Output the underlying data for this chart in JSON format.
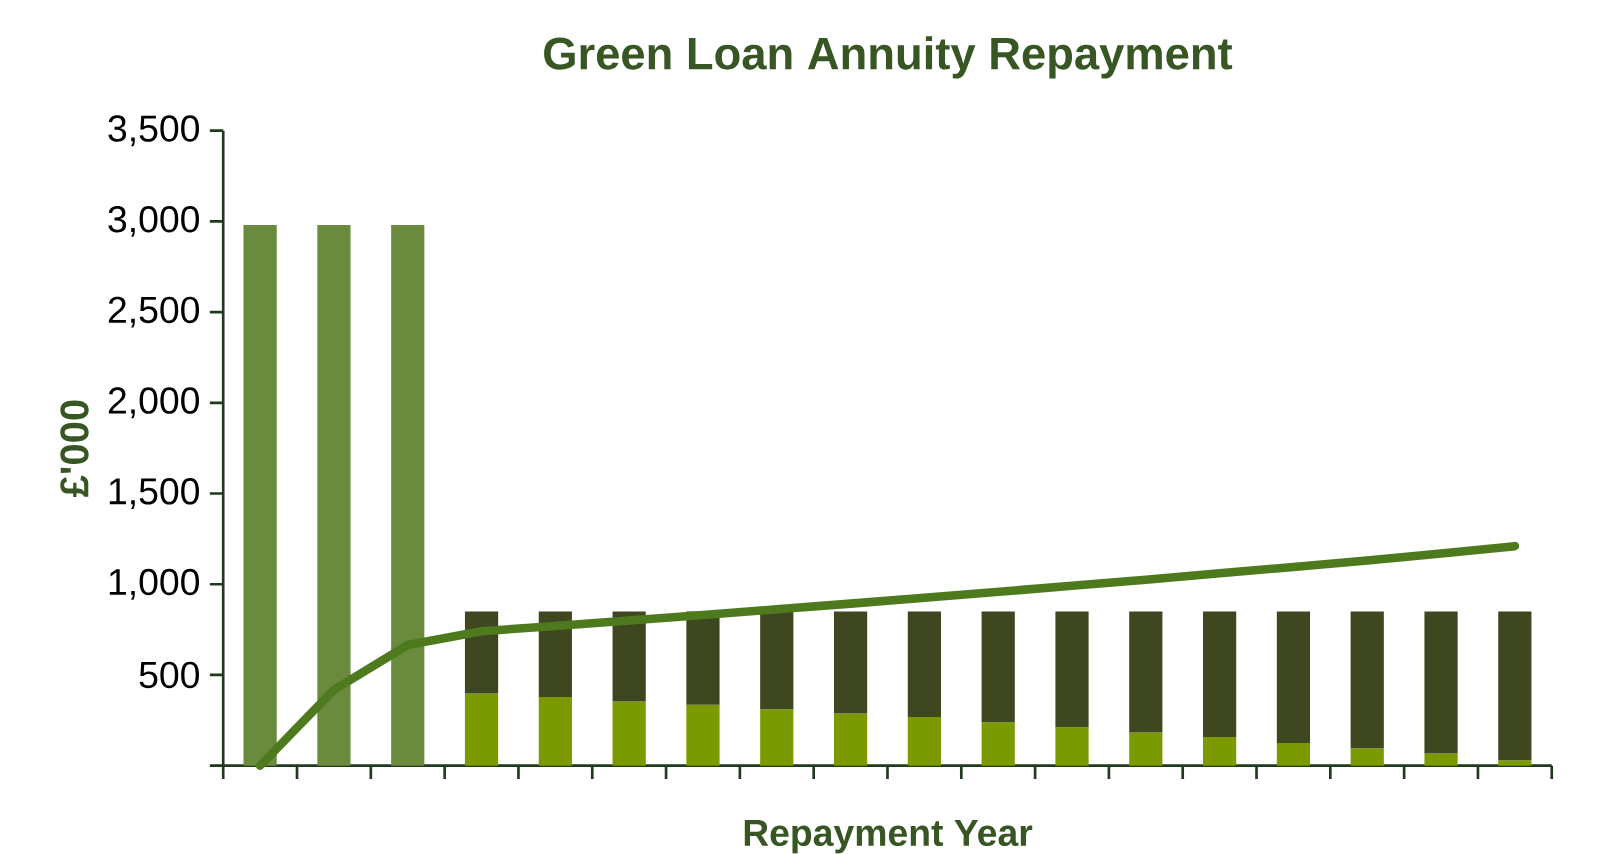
{
  "chart_data": {
    "type": "bar",
    "title": "Green Loan Annuity Repayment",
    "xlabel": "Repayment Year",
    "ylabel": "£'000",
    "stacked": true,
    "tick_labels": "y",
    "categories": [
      null,
      null,
      null,
      null,
      null,
      null,
      null,
      null,
      null,
      null,
      null,
      null,
      null,
      null,
      null,
      null,
      null,
      null
    ],
    "ylim": [
      0,
      3500
    ],
    "yticks": [
      {
        "value": 0,
        "label": null
      },
      {
        "value": 500,
        "label": "500"
      },
      {
        "value": 1000,
        "label": "1,000"
      },
      {
        "value": 1500,
        "label": "1,500"
      },
      {
        "value": 2000,
        "label": "2,000"
      },
      {
        "value": 2500,
        "label": "2,500"
      },
      {
        "value": 3000,
        "label": "3,000"
      },
      {
        "value": 3500,
        "label": "3,500"
      }
    ],
    "series": [
      {
        "color": "#6a8a3e",
        "values": [
          2980,
          2980,
          2980,
          null,
          null,
          null,
          null,
          null,
          null,
          null,
          null,
          null,
          null,
          null,
          null,
          null,
          null,
          null
        ]
      },
      {
        "color": "#7a9a00",
        "values": [
          null,
          null,
          null,
          397,
          378,
          354,
          335,
          311,
          287,
          268,
          239,
          211,
          182,
          158,
          125,
          96,
          67,
          29
        ]
      },
      {
        "color": "#3f4720",
        "values": [
          null,
          null,
          null,
          453,
          472,
          496,
          515,
          539,
          563,
          582,
          611,
          639,
          668,
          692,
          725,
          754,
          783,
          821
        ]
      },
      {
        "type": "line",
        "color": "#4e7a1e",
        "values": [
          0,
          418,
          665,
          741,
          770,
          800,
          830,
          862,
          893,
          925,
          958,
          991,
          1025,
          1060,
          1095,
          1131,
          1170,
          1210
        ]
      }
    ]
  }
}
